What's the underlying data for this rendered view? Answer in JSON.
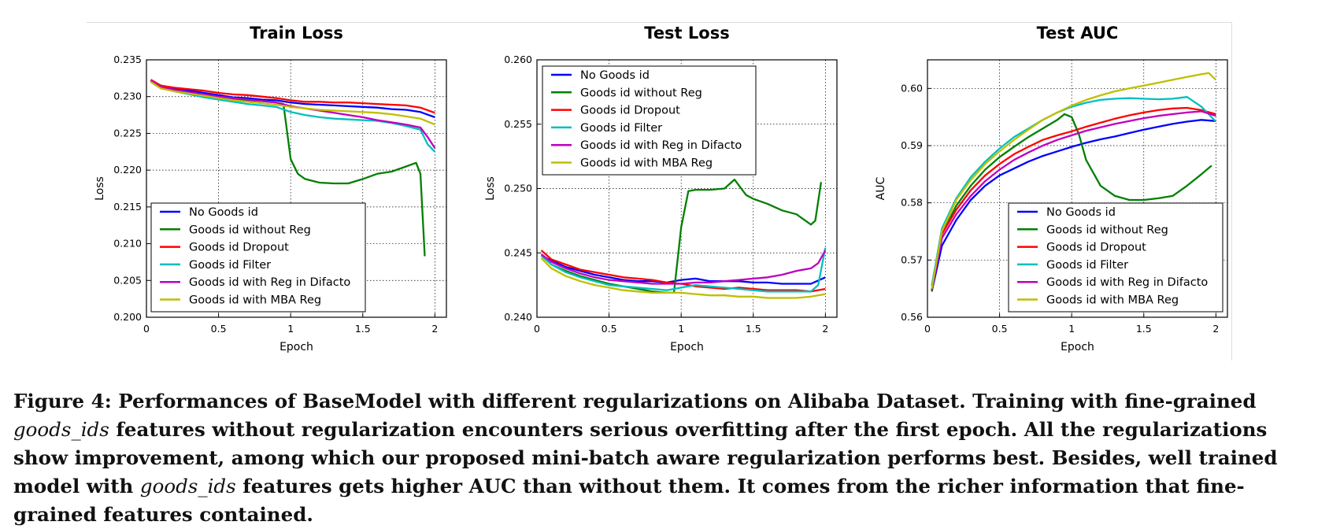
{
  "caption": {
    "figure_label": "Figure 4:",
    "part1": " Performances of BaseModel with different regularizations on Alibaba Dataset. Training with fine-grained ",
    "term1": "goods_ids",
    "part2": " features without regularization encounters serious overfitting after the first epoch. All the regularizations show improvement, among which our proposed mini-batch aware regularization performs best. Besides, well trained model with ",
    "term2": "goods_ids",
    "part3": " features gets higher AUC than without them. It comes from the richer information that fine-grained features contained."
  },
  "colors": {
    "No Goods id": "#0000ff",
    "Goods id without Reg": "#008000",
    "Goods id Dropout": "#ff0000",
    "Goods id Filter": "#00bfbf",
    "Goods id with Reg in Difacto": "#bf00bf",
    "Goods id with MBA Reg": "#bfbf00"
  },
  "chart_data": [
    {
      "type": "line",
      "title": "Train Loss",
      "xlabel": "Epoch",
      "ylabel": "Loss",
      "xlim": [
        0,
        2.08
      ],
      "ylim": [
        0.2,
        0.235
      ],
      "xticks": [
        "0",
        "0.5",
        "1",
        "1.5",
        "2"
      ],
      "xtick_values": [
        0,
        0.5,
        1,
        1.5,
        2
      ],
      "yticks": [
        "0.200",
        "0.205",
        "0.210",
        "0.215",
        "0.220",
        "0.225",
        "0.230",
        "0.235"
      ],
      "ytick_values": [
        0.2,
        0.205,
        0.21,
        0.215,
        0.22,
        0.225,
        0.23,
        0.235
      ],
      "grid": true,
      "legend_position": "lower-left",
      "series": [
        {
          "name": "No Goods id",
          "x": [
            0.03,
            0.1,
            0.2,
            0.3,
            0.4,
            0.5,
            0.6,
            0.7,
            0.8,
            0.9,
            1.0,
            1.1,
            1.2,
            1.3,
            1.4,
            1.5,
            1.6,
            1.7,
            1.8,
            1.9,
            2.0
          ],
          "y": [
            0.2322,
            0.2315,
            0.231,
            0.2308,
            0.2305,
            0.2302,
            0.2299,
            0.2298,
            0.2296,
            0.2295,
            0.2292,
            0.229,
            0.2289,
            0.2288,
            0.2287,
            0.2286,
            0.2285,
            0.2283,
            0.2282,
            0.2279,
            0.2272
          ]
        },
        {
          "name": "Goods id without Reg",
          "x": [
            0.03,
            0.1,
            0.2,
            0.3,
            0.4,
            0.5,
            0.6,
            0.7,
            0.8,
            0.9,
            0.95,
            1.0,
            1.05,
            1.1,
            1.2,
            1.3,
            1.4,
            1.5,
            1.6,
            1.7,
            1.8,
            1.87,
            1.9,
            1.93
          ],
          "y": [
            0.2322,
            0.2312,
            0.2308,
            0.2305,
            0.2302,
            0.2299,
            0.2297,
            0.2295,
            0.2294,
            0.2292,
            0.229,
            0.2215,
            0.2195,
            0.2188,
            0.2183,
            0.2182,
            0.2182,
            0.2188,
            0.2195,
            0.2198,
            0.2205,
            0.221,
            0.2195,
            0.2083
          ]
        },
        {
          "name": "Goods id Dropout",
          "x": [
            0.03,
            0.1,
            0.2,
            0.3,
            0.4,
            0.5,
            0.6,
            0.7,
            0.8,
            0.9,
            1.0,
            1.1,
            1.2,
            1.3,
            1.4,
            1.5,
            1.6,
            1.7,
            1.8,
            1.9,
            2.0
          ],
          "y": [
            0.2323,
            0.2315,
            0.2312,
            0.231,
            0.2308,
            0.2305,
            0.2303,
            0.2302,
            0.23,
            0.2298,
            0.2295,
            0.2293,
            0.2293,
            0.2292,
            0.2292,
            0.2291,
            0.229,
            0.2289,
            0.2288,
            0.2285,
            0.2278
          ]
        },
        {
          "name": "Goods id Filter",
          "x": [
            0.03,
            0.1,
            0.2,
            0.3,
            0.4,
            0.5,
            0.6,
            0.7,
            0.8,
            0.9,
            1.0,
            1.1,
            1.2,
            1.3,
            1.4,
            1.5,
            1.6,
            1.7,
            1.8,
            1.9,
            1.95,
            2.0
          ],
          "y": [
            0.2321,
            0.2312,
            0.2307,
            0.2303,
            0.2299,
            0.2296,
            0.2293,
            0.229,
            0.2288,
            0.2286,
            0.2279,
            0.2275,
            0.2272,
            0.227,
            0.2269,
            0.2268,
            0.2267,
            0.2264,
            0.226,
            0.2255,
            0.2235,
            0.2225
          ]
        },
        {
          "name": "Goods id with Reg in Difacto",
          "x": [
            0.03,
            0.1,
            0.2,
            0.3,
            0.4,
            0.5,
            0.6,
            0.7,
            0.8,
            0.9,
            1.0,
            1.1,
            1.2,
            1.3,
            1.4,
            1.5,
            1.6,
            1.7,
            1.8,
            1.9,
            1.95,
            2.0
          ],
          "y": [
            0.2322,
            0.2313,
            0.2309,
            0.2306,
            0.2303,
            0.23,
            0.2298,
            0.2296,
            0.2294,
            0.2292,
            0.2287,
            0.2284,
            0.2281,
            0.2278,
            0.2275,
            0.2272,
            0.2268,
            0.2265,
            0.2262,
            0.2258,
            0.2245,
            0.223
          ]
        },
        {
          "name": "Goods id with MBA Reg",
          "x": [
            0.03,
            0.1,
            0.2,
            0.3,
            0.4,
            0.5,
            0.6,
            0.7,
            0.8,
            0.9,
            1.0,
            1.1,
            1.2,
            1.3,
            1.4,
            1.5,
            1.6,
            1.7,
            1.8,
            1.9,
            2.0
          ],
          "y": [
            0.232,
            0.2311,
            0.2307,
            0.2304,
            0.2301,
            0.2298,
            0.2295,
            0.2293,
            0.2291,
            0.2289,
            0.2286,
            0.2284,
            0.2282,
            0.2281,
            0.228,
            0.2279,
            0.2278,
            0.2276,
            0.2273,
            0.227,
            0.2262
          ]
        }
      ]
    },
    {
      "type": "line",
      "title": "Test Loss",
      "xlabel": "Epoch",
      "ylabel": "Loss",
      "xlim": [
        0,
        2.08
      ],
      "ylim": [
        0.24,
        0.26
      ],
      "xticks": [
        "0",
        "0.5",
        "1",
        "1.5",
        "2"
      ],
      "xtick_values": [
        0,
        0.5,
        1,
        1.5,
        2
      ],
      "yticks": [
        "0.240",
        "0.245",
        "0.250",
        "0.255",
        "0.260"
      ],
      "ytick_values": [
        0.24,
        0.245,
        0.25,
        0.255,
        0.26
      ],
      "grid": true,
      "legend_position": "upper-left",
      "series": [
        {
          "name": "No Goods id",
          "x": [
            0.03,
            0.1,
            0.2,
            0.3,
            0.4,
            0.5,
            0.6,
            0.7,
            0.8,
            0.9,
            1.0,
            1.1,
            1.2,
            1.3,
            1.4,
            1.5,
            1.6,
            1.7,
            1.8,
            1.9,
            2.0
          ],
          "y": [
            0.2448,
            0.2444,
            0.2439,
            0.2436,
            0.2433,
            0.2431,
            0.2429,
            0.2428,
            0.2428,
            0.2427,
            0.2429,
            0.243,
            0.2428,
            0.2428,
            0.2428,
            0.2427,
            0.2427,
            0.2426,
            0.2426,
            0.2426,
            0.2431
          ]
        },
        {
          "name": "Goods id without Reg",
          "x": [
            0.03,
            0.1,
            0.2,
            0.3,
            0.4,
            0.5,
            0.6,
            0.7,
            0.8,
            0.9,
            0.95,
            1.0,
            1.05,
            1.1,
            1.2,
            1.3,
            1.37,
            1.45,
            1.5,
            1.6,
            1.7,
            1.8,
            1.9,
            1.93,
            1.97
          ],
          "y": [
            0.2448,
            0.2441,
            0.2436,
            0.2432,
            0.2429,
            0.2426,
            0.2424,
            0.2422,
            0.242,
            0.2419,
            0.2419,
            0.247,
            0.2498,
            0.2499,
            0.2499,
            0.25,
            0.2507,
            0.2495,
            0.2492,
            0.2488,
            0.2483,
            0.248,
            0.2472,
            0.2475,
            0.2505
          ]
        },
        {
          "name": "Goods id Dropout",
          "x": [
            0.03,
            0.1,
            0.2,
            0.3,
            0.4,
            0.5,
            0.6,
            0.7,
            0.8,
            0.9,
            1.0,
            1.1,
            1.2,
            1.3,
            1.4,
            1.5,
            1.6,
            1.7,
            1.8,
            1.9,
            2.0
          ],
          "y": [
            0.2452,
            0.2445,
            0.2441,
            0.2437,
            0.2435,
            0.2433,
            0.2431,
            0.243,
            0.2429,
            0.2427,
            0.2426,
            0.2424,
            0.2423,
            0.2422,
            0.2423,
            0.2422,
            0.2421,
            0.2421,
            0.2421,
            0.242,
            0.2422
          ]
        },
        {
          "name": "Goods id Filter",
          "x": [
            0.03,
            0.1,
            0.2,
            0.3,
            0.4,
            0.5,
            0.6,
            0.7,
            0.8,
            0.9,
            1.0,
            1.1,
            1.2,
            1.3,
            1.4,
            1.5,
            1.6,
            1.7,
            1.8,
            1.9,
            1.95,
            2.0
          ],
          "y": [
            0.2448,
            0.2441,
            0.2435,
            0.2431,
            0.2428,
            0.2425,
            0.2424,
            0.2423,
            0.2422,
            0.2421,
            0.2423,
            0.2425,
            0.2424,
            0.2423,
            0.2422,
            0.2421,
            0.242,
            0.242,
            0.242,
            0.242,
            0.2425,
            0.2454
          ]
        },
        {
          "name": "Goods id with Reg in Difacto",
          "x": [
            0.03,
            0.1,
            0.2,
            0.3,
            0.4,
            0.5,
            0.6,
            0.7,
            0.8,
            0.9,
            1.0,
            1.1,
            1.2,
            1.3,
            1.4,
            1.5,
            1.6,
            1.7,
            1.8,
            1.9,
            1.95,
            2.0
          ],
          "y": [
            0.2449,
            0.2443,
            0.2438,
            0.2434,
            0.2431,
            0.2429,
            0.2428,
            0.2427,
            0.2426,
            0.2426,
            0.2426,
            0.2427,
            0.2427,
            0.2428,
            0.2429,
            0.243,
            0.2431,
            0.2433,
            0.2436,
            0.2438,
            0.2442,
            0.2452
          ]
        },
        {
          "name": "Goods id with MBA Reg",
          "x": [
            0.03,
            0.1,
            0.2,
            0.3,
            0.4,
            0.5,
            0.6,
            0.7,
            0.8,
            0.9,
            1.0,
            1.1,
            1.2,
            1.3,
            1.4,
            1.5,
            1.6,
            1.7,
            1.8,
            1.9,
            2.0
          ],
          "y": [
            0.2446,
            0.2438,
            0.2432,
            0.2428,
            0.2425,
            0.2423,
            0.2421,
            0.242,
            0.2419,
            0.2419,
            0.2419,
            0.2418,
            0.2417,
            0.2417,
            0.2416,
            0.2416,
            0.2415,
            0.2415,
            0.2415,
            0.2416,
            0.2418
          ]
        }
      ]
    },
    {
      "type": "line",
      "title": "Test   AUC",
      "xlabel": "Epoch",
      "ylabel": "AUC",
      "xlim": [
        0,
        2.08
      ],
      "ylim": [
        0.56,
        0.605
      ],
      "xticks": [
        "0",
        "0.5",
        "1",
        "1.5",
        "2"
      ],
      "xtick_values": [
        0,
        0.5,
        1,
        1.5,
        2
      ],
      "yticks": [
        "0.56",
        "0.57",
        "0.58",
        "0.59",
        "0.60"
      ],
      "ytick_values": [
        0.56,
        0.57,
        0.58,
        0.59,
        0.6
      ],
      "grid": true,
      "legend_position": "lower-right",
      "series": [
        {
          "name": "No Goods id",
          "x": [
            0.03,
            0.1,
            0.2,
            0.3,
            0.4,
            0.5,
            0.6,
            0.7,
            0.8,
            0.9,
            1.0,
            1.1,
            1.2,
            1.3,
            1.4,
            1.5,
            1.6,
            1.7,
            1.8,
            1.9,
            2.0
          ],
          "y": [
            0.5645,
            0.5725,
            0.577,
            0.5805,
            0.583,
            0.5848,
            0.586,
            0.5872,
            0.5882,
            0.589,
            0.5898,
            0.5905,
            0.5911,
            0.5916,
            0.5922,
            0.5928,
            0.5933,
            0.5938,
            0.5942,
            0.5945,
            0.5943
          ]
        },
        {
          "name": "Goods id without Reg",
          "x": [
            0.03,
            0.1,
            0.2,
            0.3,
            0.4,
            0.5,
            0.6,
            0.7,
            0.8,
            0.9,
            0.95,
            1.0,
            1.05,
            1.1,
            1.2,
            1.3,
            1.4,
            1.5,
            1.6,
            1.7,
            1.8,
            1.9,
            1.97
          ],
          "y": [
            0.5645,
            0.5745,
            0.5795,
            0.583,
            0.5858,
            0.588,
            0.5898,
            0.5915,
            0.593,
            0.5945,
            0.5955,
            0.595,
            0.592,
            0.5875,
            0.583,
            0.5812,
            0.5805,
            0.5805,
            0.5808,
            0.5812,
            0.583,
            0.585,
            0.5865
          ]
        },
        {
          "name": "Goods id Dropout",
          "x": [
            0.03,
            0.1,
            0.2,
            0.3,
            0.4,
            0.5,
            0.6,
            0.7,
            0.8,
            0.9,
            1.0,
            1.1,
            1.2,
            1.3,
            1.4,
            1.5,
            1.6,
            1.7,
            1.8,
            1.9,
            2.0
          ],
          "y": [
            0.5655,
            0.5745,
            0.5788,
            0.5822,
            0.5848,
            0.5868,
            0.5885,
            0.5898,
            0.591,
            0.5918,
            0.5925,
            0.5933,
            0.594,
            0.5947,
            0.5953,
            0.5958,
            0.5962,
            0.5965,
            0.5966,
            0.5962,
            0.5955
          ]
        },
        {
          "name": "Goods id Filter",
          "x": [
            0.03,
            0.1,
            0.2,
            0.3,
            0.4,
            0.5,
            0.6,
            0.7,
            0.8,
            0.9,
            1.0,
            1.1,
            1.2,
            1.3,
            1.4,
            1.5,
            1.6,
            1.7,
            1.8,
            1.9,
            2.0
          ],
          "y": [
            0.5655,
            0.5755,
            0.5808,
            0.5845,
            0.5872,
            0.5895,
            0.5915,
            0.593,
            0.5945,
            0.5958,
            0.5968,
            0.5975,
            0.598,
            0.5982,
            0.5983,
            0.5982,
            0.5981,
            0.5982,
            0.5985,
            0.5968,
            0.5942
          ]
        },
        {
          "name": "Goods id with Reg in Difacto",
          "x": [
            0.03,
            0.1,
            0.2,
            0.3,
            0.4,
            0.5,
            0.6,
            0.7,
            0.8,
            0.9,
            1.0,
            1.1,
            1.2,
            1.3,
            1.4,
            1.5,
            1.6,
            1.7,
            1.8,
            1.9,
            2.0
          ],
          "y": [
            0.5648,
            0.5738,
            0.578,
            0.5812,
            0.5838,
            0.5858,
            0.5875,
            0.5888,
            0.59,
            0.591,
            0.5918,
            0.5926,
            0.5932,
            0.5938,
            0.5943,
            0.5948,
            0.5952,
            0.5955,
            0.5958,
            0.596,
            0.5952
          ]
        },
        {
          "name": "Goods id with MBA Reg",
          "x": [
            0.03,
            0.1,
            0.2,
            0.3,
            0.4,
            0.5,
            0.6,
            0.7,
            0.8,
            0.9,
            1.0,
            1.1,
            1.2,
            1.3,
            1.4,
            1.5,
            1.6,
            1.7,
            1.8,
            1.9,
            1.95,
            2.0
          ],
          "y": [
            0.565,
            0.575,
            0.5805,
            0.584,
            0.5868,
            0.589,
            0.591,
            0.5928,
            0.5945,
            0.5958,
            0.597,
            0.598,
            0.5988,
            0.5995,
            0.6,
            0.6005,
            0.601,
            0.6015,
            0.602,
            0.6025,
            0.6027,
            0.6015
          ]
        }
      ]
    }
  ]
}
